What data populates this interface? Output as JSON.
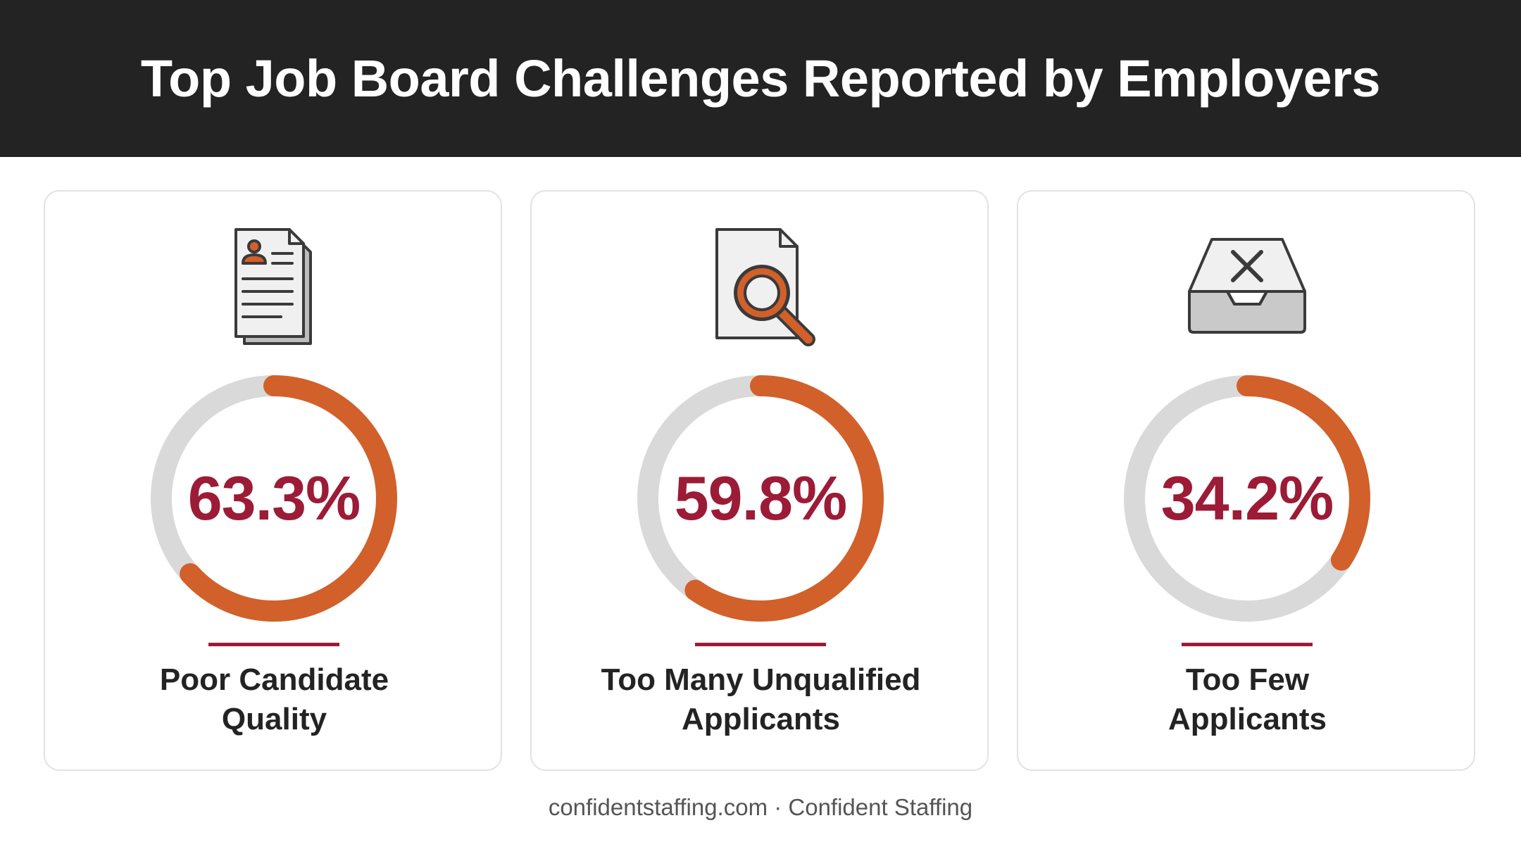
{
  "header": {
    "title": "Top Job Board Challenges Reported by Employers"
  },
  "colors": {
    "header_bg": "#232323",
    "accent_orange": "#d2602a",
    "value_red": "#9c1b36",
    "track_gray": "#d9d9d9",
    "icon_stroke": "#3a3a3a",
    "icon_fill": "#f0f0f0"
  },
  "chart_data": {
    "type": "donut",
    "title": "Top Job Board Challenges Reported by Employers",
    "unit": "%",
    "max": 100,
    "items": [
      {
        "label_lines": [
          "Poor Candidate",
          "Quality"
        ],
        "value": 63.3,
        "value_label": "63.3%",
        "icon": "resume-document-icon"
      },
      {
        "label_lines": [
          "Too Many Unqualified",
          "Applicants"
        ],
        "value": 59.8,
        "value_label": "59.8%",
        "icon": "document-search-icon"
      },
      {
        "label_lines": [
          "Too Few",
          "Applicants"
        ],
        "value": 34.2,
        "value_label": "34.2%",
        "icon": "empty-inbox-x-icon"
      }
    ]
  },
  "footer": {
    "text": "confidentstaffing.com · Confident Staffing"
  }
}
